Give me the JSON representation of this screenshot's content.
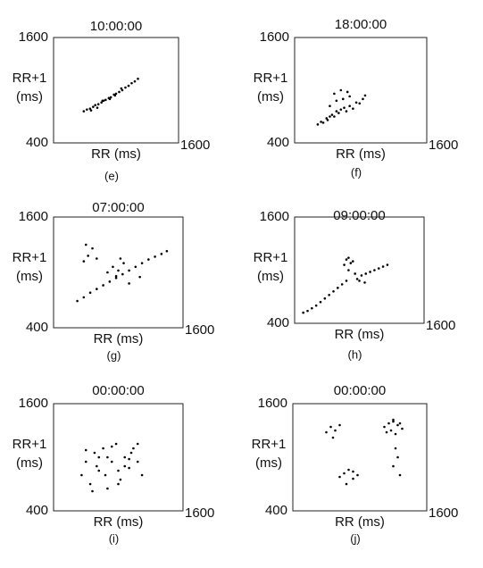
{
  "chart_data": [
    {
      "type": "scatter",
      "title": "10:00:00",
      "xlabel": "RR (ms)",
      "ylabel": [
        "RR+1",
        "(ms)"
      ],
      "caption": "(e)",
      "color": "#000000",
      "xlim": [
        400,
        1600
      ],
      "ylim": [
        400,
        1600
      ],
      "xticks": [
        1600
      ],
      "yticks": [
        400,
        1600
      ],
      "x": [
        690,
        720,
        750,
        780,
        800,
        830,
        860,
        880,
        900,
        930,
        950,
        980,
        1000,
        1030,
        1060,
        1090,
        1120,
        1150,
        1180,
        1210,
        760,
        820,
        870,
        940,
        990,
        1050
      ],
      "y": [
        760,
        780,
        790,
        810,
        830,
        840,
        860,
        880,
        890,
        910,
        920,
        950,
        960,
        980,
        1000,
        1030,
        1050,
        1080,
        1100,
        1130,
        770,
        800,
        880,
        900,
        940,
        1020
      ]
    },
    {
      "type": "scatter",
      "title": "18:00:00",
      "xlabel": "RR (ms)",
      "ylabel": [
        "RR+1",
        "(ms)"
      ],
      "caption": "(f)",
      "color": "#000000",
      "xlim": [
        400,
        1600
      ],
      "ylim": [
        400,
        1600
      ],
      "xticks": [
        1600
      ],
      "yticks": [
        400,
        1600
      ],
      "x": [
        610,
        640,
        660,
        690,
        700,
        720,
        740,
        760,
        780,
        800,
        820,
        850,
        870,
        900,
        930,
        960,
        990,
        1020,
        1040,
        720,
        780,
        840,
        880,
        760,
        820,
        900
      ],
      "y": [
        610,
        640,
        630,
        680,
        660,
        700,
        720,
        700,
        760,
        740,
        780,
        800,
        760,
        820,
        790,
        860,
        850,
        900,
        940,
        820,
        880,
        900,
        980,
        960,
        1000,
        930
      ]
    },
    {
      "type": "scatter",
      "title": "07:00:00",
      "xlabel": "RR (ms)",
      "ylabel": [
        "RR+1",
        "(ms)"
      ],
      "caption": "(g)",
      "color": "#000000",
      "xlim": [
        400,
        1600
      ],
      "ylim": [
        400,
        1600
      ],
      "xticks": [
        1600
      ],
      "yticks": [
        400,
        1600
      ],
      "x": [
        620,
        680,
        740,
        800,
        860,
        920,
        980,
        1040,
        1100,
        1160,
        1220,
        1280,
        1340,
        1400,
        1450,
        900,
        950,
        1000,
        1050,
        980,
        1020,
        680,
        720,
        760,
        800,
        700,
        1100,
        1200
      ],
      "y": [
        690,
        730,
        780,
        820,
        860,
        900,
        940,
        980,
        1020,
        1060,
        1100,
        1140,
        1170,
        1200,
        1230,
        1000,
        1060,
        1020,
        1100,
        960,
        1150,
        1120,
        1180,
        1260,
        1150,
        1300,
        880,
        950
      ]
    },
    {
      "type": "scatter",
      "title": "09:00:00",
      "xlabel": "RR (ms)",
      "ylabel": [
        "RR+1",
        "(ms)"
      ],
      "caption": "(h)",
      "color": "#000000",
      "xlim": [
        400,
        1600
      ],
      "ylim": [
        400,
        1600
      ],
      "xticks": [
        1600
      ],
      "yticks": [
        400,
        1600
      ],
      "x": [
        480,
        520,
        560,
        600,
        640,
        680,
        720,
        760,
        800,
        840,
        880,
        900,
        920,
        880,
        860,
        900,
        940,
        960,
        980,
        1020,
        1060,
        1100,
        1140,
        1180,
        1220,
        1260,
        1000,
        1050
      ],
      "y": [
        520,
        540,
        570,
        600,
        640,
        680,
        720,
        760,
        800,
        840,
        880,
        1000,
        1080,
        1120,
        1060,
        1140,
        1100,
        960,
        900,
        940,
        960,
        980,
        1000,
        1020,
        1040,
        1060,
        880,
        860
      ]
    },
    {
      "type": "scatter",
      "title": "00:00:00",
      "xlabel": "RR (ms)",
      "ylabel": [
        "RR+1",
        "(ms)"
      ],
      "caption": "(i)",
      "color": "#000000",
      "xlim": [
        400,
        1600
      ],
      "ylim": [
        400,
        1600
      ],
      "xticks": [
        1600
      ],
      "yticks": [
        400,
        1600
      ],
      "x": [
        660,
        700,
        740,
        780,
        820,
        860,
        900,
        940,
        980,
        1020,
        1060,
        1100,
        1140,
        1180,
        1220,
        700,
        760,
        820,
        880,
        940,
        1000,
        1060,
        1120,
        1180,
        800,
        900,
        1000,
        1100
      ],
      "y": [
        800,
        950,
        700,
        1050,
        850,
        1100,
        650,
        950,
        1150,
        750,
        1000,
        880,
        1100,
        950,
        800,
        1080,
        620,
        1000,
        800,
        1120,
        700,
        900,
        1050,
        1150,
        900,
        1000,
        850,
        980
      ]
    },
    {
      "type": "scatter",
      "title": "00:00:00",
      "xlabel": "RR (ms)",
      "ylabel": [
        "RR+1",
        "(ms)"
      ],
      "caption": "(j)",
      "color": "#000000",
      "xlim": [
        400,
        1600
      ],
      "ylim": [
        400,
        1600
      ],
      "xticks": [
        1600
      ],
      "yticks": [
        400,
        1600
      ],
      "x": [
        1220,
        1260,
        1300,
        1340,
        1380,
        1240,
        1280,
        1320,
        1360,
        1300,
        700,
        740,
        780,
        820,
        760,
        820,
        860,
        900,
        940,
        980,
        880,
        940,
        1320,
        1340,
        1300,
        1360
      ],
      "y": [
        1340,
        1380,
        1400,
        1360,
        1320,
        1280,
        1300,
        1260,
        1380,
        1420,
        1280,
        1340,
        1300,
        1360,
        1220,
        780,
        820,
        860,
        840,
        800,
        700,
        760,
        1100,
        1000,
        900,
        800
      ]
    }
  ]
}
